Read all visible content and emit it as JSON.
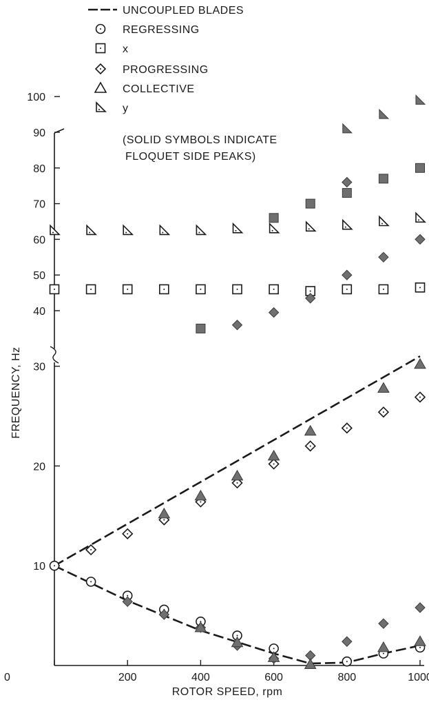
{
  "chart_data": {
    "type": "scatter",
    "xlabel": "ROTOR SPEED, rpm",
    "ylabel": "FREQUENCY, Hz",
    "x_ticks": [
      "0",
      "200",
      "400",
      "600",
      "800",
      "1000"
    ],
    "y_ticks_lower": [
      "10",
      "20",
      "30"
    ],
    "y_ticks_upper": [
      "40",
      "50",
      "60",
      "70",
      "80",
      "90",
      "100"
    ],
    "xlim": [
      0,
      1000
    ],
    "ylim_lower": [
      0,
      32
    ],
    "ylim_upper": [
      35,
      100
    ],
    "axis_break": "between 30 and 40 Hz",
    "grid": false,
    "legend_position": "top",
    "legend": [
      {
        "symbol": "dashed-line",
        "label": "UNCOUPLED BLADES"
      },
      {
        "symbol": "circle",
        "label": "REGRESSING"
      },
      {
        "symbol": "square",
        "label": "x"
      },
      {
        "symbol": "diamond",
        "label": "PROGRESSING"
      },
      {
        "symbol": "triangle",
        "label": "COLLECTIVE"
      },
      {
        "symbol": "right-triangle",
        "label": "y"
      }
    ],
    "note_lines": [
      "(SOLID SYMBOLS INDICATE",
      "FLOQUET SIDE PEAKS)"
    ],
    "uncoupled_blades": {
      "upper": [
        [
          0,
          10
        ],
        [
          1000,
          31
        ]
      ],
      "lower": [
        [
          0,
          10
        ],
        [
          200,
          6.5
        ],
        [
          400,
          3.5
        ],
        [
          600,
          1.2
        ],
        [
          700,
          0.2
        ],
        [
          800,
          0.3
        ],
        [
          900,
          1.2
        ],
        [
          1000,
          2
        ]
      ]
    },
    "series": [
      {
        "name": "REGRESSING",
        "symbol": "circle",
        "filled": false,
        "points": [
          [
            0,
            10
          ],
          [
            100,
            8.4
          ],
          [
            200,
            7
          ],
          [
            300,
            5.6
          ],
          [
            400,
            4.4
          ],
          [
            500,
            3
          ],
          [
            600,
            1.7
          ],
          [
            800,
            0.4
          ],
          [
            900,
            1.2
          ],
          [
            1000,
            1.8
          ]
        ]
      },
      {
        "name": "x",
        "symbol": "square",
        "filled": false,
        "points": [
          [
            0,
            46
          ],
          [
            100,
            46
          ],
          [
            200,
            46
          ],
          [
            300,
            46
          ],
          [
            400,
            46
          ],
          [
            500,
            46
          ],
          [
            600,
            46
          ],
          [
            700,
            45.5
          ],
          [
            800,
            46
          ],
          [
            900,
            46
          ],
          [
            1000,
            46.5
          ]
        ]
      },
      {
        "name": "x",
        "symbol": "square",
        "filled": true,
        "points": [
          [
            400,
            35
          ],
          [
            600,
            66
          ],
          [
            700,
            70
          ],
          [
            800,
            73
          ],
          [
            900,
            77
          ],
          [
            1000,
            80
          ]
        ]
      },
      {
        "name": "PROGRESSING",
        "symbol": "diamond",
        "filled": false,
        "points": [
          [
            100,
            11.6
          ],
          [
            200,
            13.2
          ],
          [
            300,
            14.6
          ],
          [
            400,
            16.4
          ],
          [
            500,
            18.3
          ],
          [
            600,
            20.2
          ],
          [
            700,
            22
          ],
          [
            800,
            23.8
          ],
          [
            900,
            25.4
          ],
          [
            1000,
            26.9
          ]
        ]
      },
      {
        "name": "PROGRESSING",
        "symbol": "diamond",
        "filled": true,
        "points": [
          [
            200,
            6.4
          ],
          [
            300,
            5.1
          ],
          [
            400,
            3.8
          ],
          [
            500,
            2
          ],
          [
            600,
            0.7
          ],
          [
            700,
            1
          ],
          [
            800,
            2.4
          ],
          [
            900,
            4.2
          ],
          [
            1000,
            5.8
          ],
          [
            500,
            36
          ],
          [
            600,
            39.5
          ],
          [
            700,
            43.5
          ],
          [
            800,
            50
          ],
          [
            800,
            76
          ],
          [
            900,
            55
          ],
          [
            1000,
            60
          ]
        ]
      },
      {
        "name": "COLLECTIVE",
        "symbol": "triangle",
        "filled": true,
        "points": [
          [
            300,
            15.2
          ],
          [
            400,
            17
          ],
          [
            500,
            19
          ],
          [
            600,
            21
          ],
          [
            700,
            23.5
          ],
          [
            900,
            27.8
          ],
          [
            1000,
            30.2
          ],
          [
            400,
            3.8
          ],
          [
            500,
            2.3
          ],
          [
            600,
            0.8
          ],
          [
            700,
            0.1
          ],
          [
            900,
            1.8
          ],
          [
            1000,
            2.4
          ]
        ]
      },
      {
        "name": "y",
        "symbol": "right-triangle",
        "filled": false,
        "points": [
          [
            0,
            62.5
          ],
          [
            100,
            62.5
          ],
          [
            200,
            62.5
          ],
          [
            300,
            62.5
          ],
          [
            400,
            62.5
          ],
          [
            500,
            63
          ],
          [
            600,
            63
          ],
          [
            700,
            63.5
          ],
          [
            800,
            64
          ],
          [
            900,
            65
          ],
          [
            1000,
            66
          ]
        ]
      },
      {
        "name": "y",
        "symbol": "right-triangle",
        "filled": true,
        "points": [
          [
            800,
            91
          ],
          [
            900,
            95
          ],
          [
            1000,
            99
          ]
        ]
      }
    ]
  }
}
